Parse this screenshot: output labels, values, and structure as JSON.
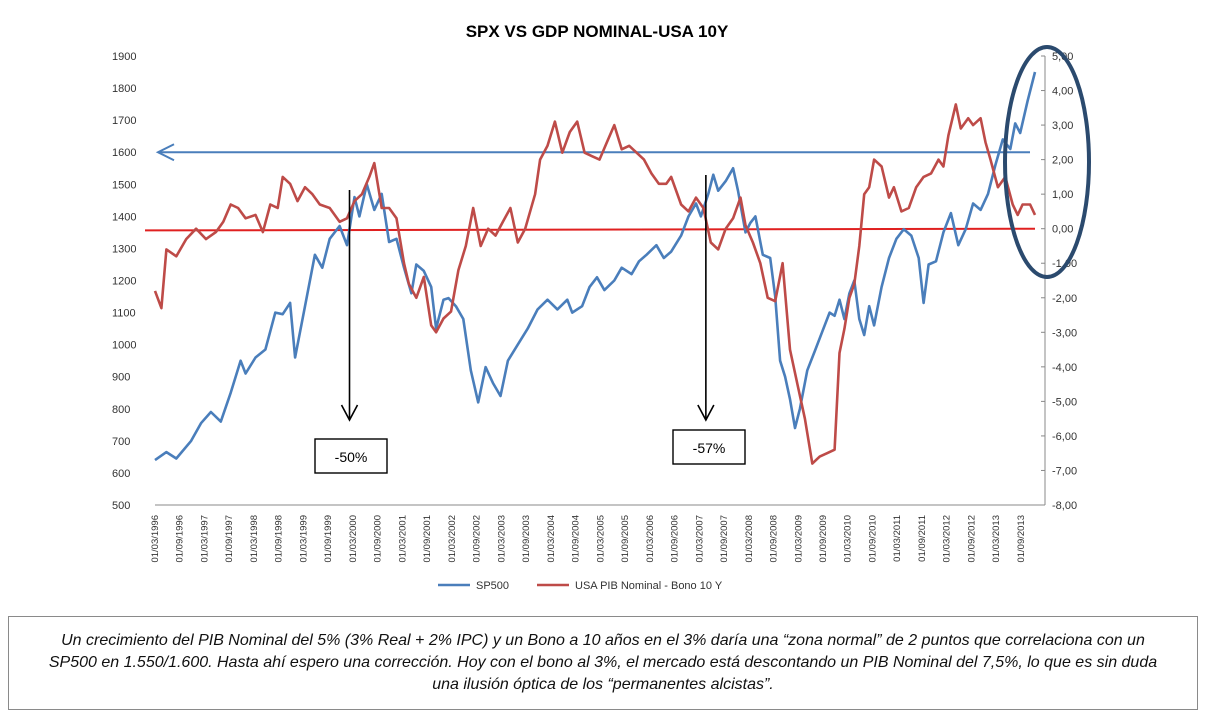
{
  "chart_data": {
    "type": "line",
    "title": "SPX VS GDP NOMINAL-USA 10Y",
    "y_left": {
      "ticks": [
        "1900",
        "1800",
        "1700",
        "1600",
        "1500",
        "1400",
        "1300",
        "1200",
        "1100",
        "1000",
        "900",
        "800",
        "700",
        "600",
        "500"
      ],
      "lim": [
        500,
        1900
      ]
    },
    "y_right": {
      "ticks": [
        "5,00",
        "4,00",
        "3,00",
        "2,00",
        "1,00",
        "0,00",
        "-1,00",
        "-2,00",
        "-3,00",
        "-4,00",
        "-5,00",
        "-6,00",
        "-7,00",
        "-8,00"
      ],
      "lim": [
        -8,
        5
      ]
    },
    "x_ticks": [
      "01/03/1996",
      "01/09/1996",
      "01/03/1997",
      "01/09/1997",
      "01/03/1998",
      "01/09/1998",
      "01/03/1999",
      "01/09/1999",
      "01/03/2000",
      "01/09/2000",
      "01/03/2001",
      "01/09/2001",
      "01/03/2002",
      "01/09/2002",
      "01/03/2003",
      "01/09/2003",
      "01/03/2004",
      "01/09/2004",
      "01/03/2005",
      "01/09/2005",
      "01/03/2006",
      "01/09/2006",
      "01/03/2007",
      "01/09/2007",
      "01/03/2008",
      "01/09/2008",
      "01/03/2009",
      "01/09/2009",
      "01/03/2010",
      "01/09/2010",
      "01/03/2011",
      "01/09/2011",
      "01/03/2012",
      "01/09/2012",
      "01/03/2013",
      "01/09/2013"
    ],
    "series": [
      {
        "name": "SP500",
        "axis": "left",
        "color": "#4a7ebb",
        "points": [
          [
            1996.17,
            640
          ],
          [
            1996.4,
            665
          ],
          [
            1996.6,
            645
          ],
          [
            1996.9,
            700
          ],
          [
            1997.1,
            755
          ],
          [
            1997.3,
            790
          ],
          [
            1997.5,
            760
          ],
          [
            1997.7,
            850
          ],
          [
            1997.9,
            950
          ],
          [
            1998.0,
            910
          ],
          [
            1998.2,
            960
          ],
          [
            1998.4,
            985
          ],
          [
            1998.6,
            1100
          ],
          [
            1998.75,
            1095
          ],
          [
            1998.9,
            1130
          ],
          [
            1999.0,
            960
          ],
          [
            1999.2,
            1120
          ],
          [
            1999.4,
            1280
          ],
          [
            1999.55,
            1240
          ],
          [
            1999.7,
            1330
          ],
          [
            1999.9,
            1370
          ],
          [
            2000.05,
            1310
          ],
          [
            2000.2,
            1460
          ],
          [
            2000.3,
            1400
          ],
          [
            2000.45,
            1500
          ],
          [
            2000.6,
            1420
          ],
          [
            2000.75,
            1470
          ],
          [
            2000.9,
            1320
          ],
          [
            2001.05,
            1330
          ],
          [
            2001.2,
            1240
          ],
          [
            2001.35,
            1160
          ],
          [
            2001.45,
            1250
          ],
          [
            2001.6,
            1230
          ],
          [
            2001.75,
            1180
          ],
          [
            2001.85,
            1050
          ],
          [
            2002.0,
            1140
          ],
          [
            2002.1,
            1145
          ],
          [
            2002.25,
            1120
          ],
          [
            2002.4,
            1080
          ],
          [
            2002.55,
            920
          ],
          [
            2002.7,
            820
          ],
          [
            2002.85,
            930
          ],
          [
            2003.0,
            880
          ],
          [
            2003.15,
            840
          ],
          [
            2003.3,
            950
          ],
          [
            2003.5,
            1000
          ],
          [
            2003.7,
            1050
          ],
          [
            2003.9,
            1110
          ],
          [
            2004.1,
            1140
          ],
          [
            2004.3,
            1110
          ],
          [
            2004.5,
            1140
          ],
          [
            2004.6,
            1100
          ],
          [
            2004.8,
            1120
          ],
          [
            2004.95,
            1180
          ],
          [
            2005.1,
            1210
          ],
          [
            2005.25,
            1170
          ],
          [
            2005.45,
            1200
          ],
          [
            2005.6,
            1240
          ],
          [
            2005.8,
            1220
          ],
          [
            2005.95,
            1260
          ],
          [
            2006.1,
            1280
          ],
          [
            2006.3,
            1310
          ],
          [
            2006.45,
            1270
          ],
          [
            2006.6,
            1290
          ],
          [
            2006.8,
            1340
          ],
          [
            2006.95,
            1400
          ],
          [
            2007.1,
            1440
          ],
          [
            2007.2,
            1400
          ],
          [
            2007.35,
            1470
          ],
          [
            2007.45,
            1530
          ],
          [
            2007.55,
            1480
          ],
          [
            2007.7,
            1510
          ],
          [
            2007.85,
            1550
          ],
          [
            2007.95,
            1480
          ],
          [
            2008.1,
            1350
          ],
          [
            2008.2,
            1380
          ],
          [
            2008.3,
            1400
          ],
          [
            2008.45,
            1280
          ],
          [
            2008.6,
            1270
          ],
          [
            2008.7,
            1150
          ],
          [
            2008.8,
            950
          ],
          [
            2008.9,
            900
          ],
          [
            2009.0,
            830
          ],
          [
            2009.1,
            740
          ],
          [
            2009.2,
            800
          ],
          [
            2009.35,
            920
          ],
          [
            2009.5,
            980
          ],
          [
            2009.65,
            1040
          ],
          [
            2009.8,
            1100
          ],
          [
            2009.9,
            1090
          ],
          [
            2010.0,
            1140
          ],
          [
            2010.1,
            1080
          ],
          [
            2010.2,
            1160
          ],
          [
            2010.3,
            1200
          ],
          [
            2010.4,
            1080
          ],
          [
            2010.5,
            1030
          ],
          [
            2010.6,
            1120
          ],
          [
            2010.7,
            1060
          ],
          [
            2010.85,
            1180
          ],
          [
            2011.0,
            1270
          ],
          [
            2011.15,
            1330
          ],
          [
            2011.3,
            1360
          ],
          [
            2011.45,
            1340
          ],
          [
            2011.6,
            1270
          ],
          [
            2011.7,
            1130
          ],
          [
            2011.8,
            1250
          ],
          [
            2011.95,
            1260
          ],
          [
            2012.1,
            1350
          ],
          [
            2012.25,
            1410
          ],
          [
            2012.4,
            1310
          ],
          [
            2012.55,
            1360
          ],
          [
            2012.7,
            1440
          ],
          [
            2012.85,
            1420
          ],
          [
            2013.0,
            1470
          ],
          [
            2013.15,
            1560
          ],
          [
            2013.3,
            1640
          ],
          [
            2013.45,
            1610
          ],
          [
            2013.55,
            1690
          ],
          [
            2013.65,
            1660
          ],
          [
            2013.8,
            1760
          ],
          [
            2013.95,
            1850
          ]
        ]
      },
      {
        "name": "USA PIB Nominal - Bono 10 Y",
        "axis": "right",
        "color": "#be4b48",
        "points": [
          [
            1996.17,
            -1.8
          ],
          [
            1996.3,
            -2.3
          ],
          [
            1996.4,
            -0.6
          ],
          [
            1996.6,
            -0.8
          ],
          [
            1996.8,
            -0.3
          ],
          [
            1997.0,
            0.0
          ],
          [
            1997.2,
            -0.3
          ],
          [
            1997.4,
            -0.1
          ],
          [
            1997.55,
            0.2
          ],
          [
            1997.7,
            0.7
          ],
          [
            1997.85,
            0.6
          ],
          [
            1998.0,
            0.3
          ],
          [
            1998.2,
            0.4
          ],
          [
            1998.35,
            -0.1
          ],
          [
            1998.5,
            0.7
          ],
          [
            1998.65,
            0.6
          ],
          [
            1998.75,
            1.5
          ],
          [
            1998.9,
            1.3
          ],
          [
            1999.05,
            0.8
          ],
          [
            1999.2,
            1.2
          ],
          [
            1999.35,
            1.0
          ],
          [
            1999.5,
            0.7
          ],
          [
            1999.7,
            0.6
          ],
          [
            1999.9,
            0.2
          ],
          [
            2000.05,
            0.3
          ],
          [
            2000.2,
            0.8
          ],
          [
            2000.35,
            1.0
          ],
          [
            2000.5,
            1.5
          ],
          [
            2000.6,
            1.9
          ],
          [
            2000.75,
            0.6
          ],
          [
            2000.9,
            0.6
          ],
          [
            2001.05,
            0.3
          ],
          [
            2001.2,
            -1.0
          ],
          [
            2001.3,
            -1.6
          ],
          [
            2001.45,
            -2.0
          ],
          [
            2001.6,
            -1.4
          ],
          [
            2001.75,
            -2.8
          ],
          [
            2001.85,
            -3.0
          ],
          [
            2002.0,
            -2.6
          ],
          [
            2002.15,
            -2.4
          ],
          [
            2002.3,
            -1.2
          ],
          [
            2002.45,
            -0.5
          ],
          [
            2002.6,
            0.6
          ],
          [
            2002.75,
            -0.5
          ],
          [
            2002.9,
            0.0
          ],
          [
            2003.05,
            -0.2
          ],
          [
            2003.2,
            0.2
          ],
          [
            2003.35,
            0.6
          ],
          [
            2003.5,
            -0.4
          ],
          [
            2003.65,
            0.0
          ],
          [
            2003.85,
            1.0
          ],
          [
            2003.95,
            2.0
          ],
          [
            2004.1,
            2.4
          ],
          [
            2004.25,
            3.1
          ],
          [
            2004.4,
            2.2
          ],
          [
            2004.55,
            2.8
          ],
          [
            2004.7,
            3.1
          ],
          [
            2004.85,
            2.2
          ],
          [
            2005.0,
            2.1
          ],
          [
            2005.15,
            2.0
          ],
          [
            2005.3,
            2.5
          ],
          [
            2005.45,
            3.0
          ],
          [
            2005.6,
            2.3
          ],
          [
            2005.75,
            2.4
          ],
          [
            2005.9,
            2.2
          ],
          [
            2006.05,
            2.0
          ],
          [
            2006.2,
            1.6
          ],
          [
            2006.35,
            1.3
          ],
          [
            2006.5,
            1.3
          ],
          [
            2006.6,
            1.5
          ],
          [
            2006.8,
            0.7
          ],
          [
            2006.95,
            0.5
          ],
          [
            2007.1,
            0.9
          ],
          [
            2007.25,
            0.6
          ],
          [
            2007.4,
            -0.4
          ],
          [
            2007.55,
            -0.6
          ],
          [
            2007.7,
            0.0
          ],
          [
            2007.85,
            0.3
          ],
          [
            2008.0,
            0.9
          ],
          [
            2008.1,
            0.1
          ],
          [
            2008.25,
            -0.4
          ],
          [
            2008.4,
            -1.0
          ],
          [
            2008.55,
            -2.0
          ],
          [
            2008.7,
            -2.1
          ],
          [
            2008.85,
            -1.0
          ],
          [
            2009.0,
            -3.5
          ],
          [
            2009.15,
            -4.5
          ],
          [
            2009.3,
            -5.5
          ],
          [
            2009.45,
            -6.8
          ],
          [
            2009.6,
            -6.6
          ],
          [
            2009.75,
            -6.5
          ],
          [
            2009.9,
            -6.4
          ],
          [
            2010.0,
            -3.6
          ],
          [
            2010.1,
            -2.9
          ],
          [
            2010.2,
            -2.0
          ],
          [
            2010.3,
            -1.6
          ],
          [
            2010.4,
            -0.5
          ],
          [
            2010.5,
            1.0
          ],
          [
            2010.6,
            1.2
          ],
          [
            2010.7,
            2.0
          ],
          [
            2010.85,
            1.8
          ],
          [
            2011.0,
            0.9
          ],
          [
            2011.1,
            1.2
          ],
          [
            2011.25,
            0.5
          ],
          [
            2011.4,
            0.6
          ],
          [
            2011.55,
            1.2
          ],
          [
            2011.7,
            1.5
          ],
          [
            2011.85,
            1.6
          ],
          [
            2012.0,
            2.0
          ],
          [
            2012.1,
            1.8
          ],
          [
            2012.2,
            2.7
          ],
          [
            2012.35,
            3.6
          ],
          [
            2012.45,
            2.9
          ],
          [
            2012.6,
            3.2
          ],
          [
            2012.7,
            3.0
          ],
          [
            2012.85,
            3.2
          ],
          [
            2012.95,
            2.5
          ],
          [
            2013.05,
            2.0
          ],
          [
            2013.2,
            1.2
          ],
          [
            2013.35,
            1.5
          ],
          [
            2013.5,
            0.7
          ],
          [
            2013.6,
            0.4
          ],
          [
            2013.7,
            0.7
          ],
          [
            2013.85,
            0.7
          ],
          [
            2013.95,
            0.4
          ]
        ]
      }
    ],
    "reference_lines": [
      {
        "name": "horizontal-1600-arrow",
        "axis": "left",
        "value": 1600,
        "color": "#4a7ebb",
        "arrow": "left"
      },
      {
        "name": "horizontal-zero-line",
        "axis": "right",
        "from": [
          1996.17,
          -0.05
        ],
        "to": [
          2013.95,
          0.0
        ],
        "color": "#e02020"
      }
    ],
    "annotations": [
      {
        "label": "-50%",
        "x": 2000.1
      },
      {
        "label": "-57%",
        "x": 2007.3
      }
    ],
    "legend": {
      "placement": "bottom",
      "items": [
        "SP500",
        "USA PIB Nominal - Bono 10 Y"
      ]
    }
  },
  "caption": "Un crecimiento del PIB Nominal del 5% (3% Real + 2% IPC) y un Bono a 10 años en el 3% daría una “zona normal” de 2 puntos que correlaciona con un SP500 en 1.550/1.600. Hasta ahí espero una corrección. Hoy con el bono al 3%, el mercado está descontando un PIB Nominal del 7,5%, lo que es sin duda una ilusión óptica de los “permanentes alcistas”."
}
